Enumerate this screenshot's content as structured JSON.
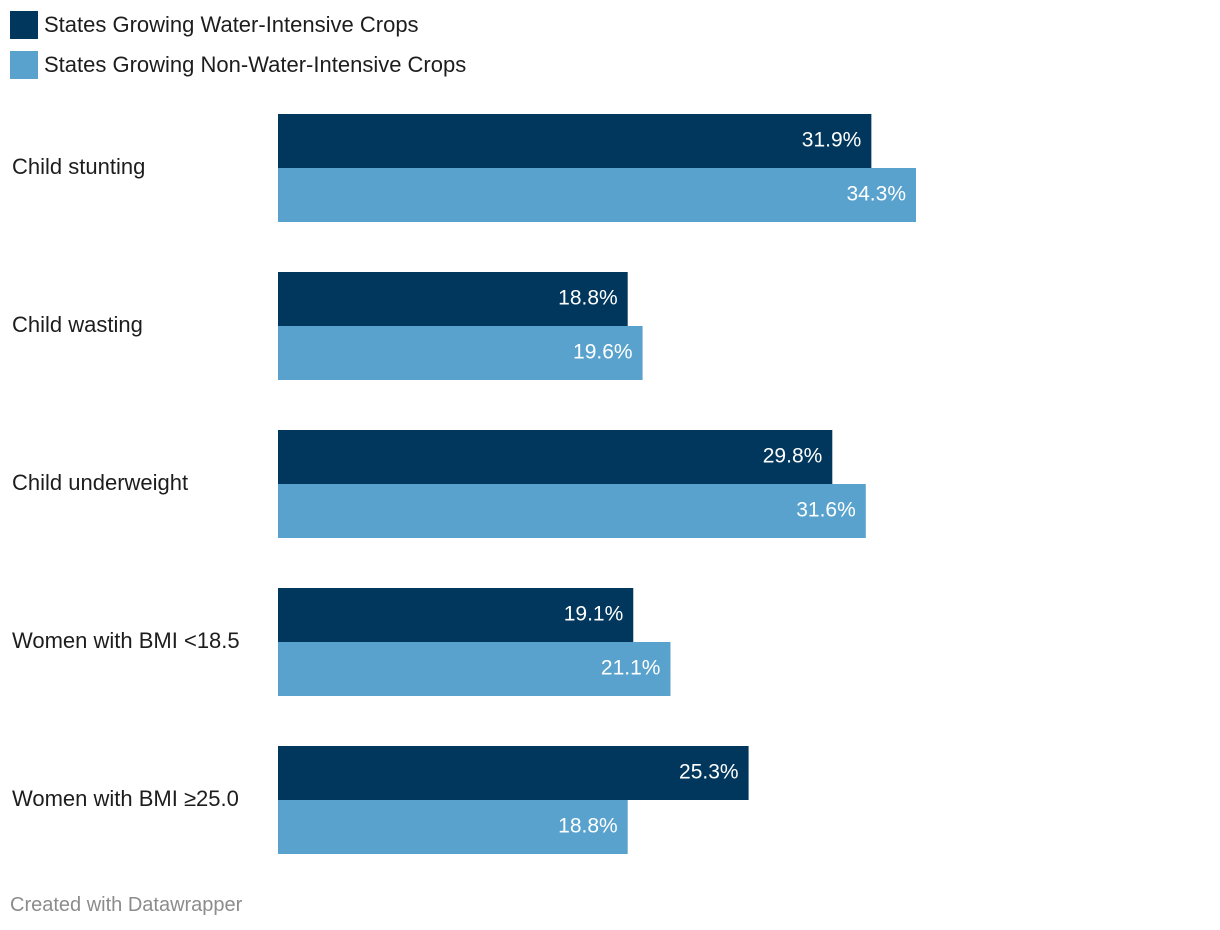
{
  "chart_data": {
    "type": "bar",
    "orientation": "horizontal",
    "title": "",
    "xlabel": "",
    "ylabel": "",
    "categories": [
      "Child stunting",
      "Child wasting",
      "Child underweight",
      "Women with BMI <18.5",
      "Women with BMI ≥25.0"
    ],
    "series": [
      {
        "name": "States Growing Water-Intensive Crops",
        "color": "#01375c",
        "values": [
          31.9,
          18.8,
          29.8,
          19.1,
          25.3
        ],
        "labels": [
          "31.9%",
          "18.8%",
          "29.8%",
          "19.1%",
          "25.3%"
        ]
      },
      {
        "name": "States Growing Non-Water-Intensive Crops",
        "color": "#58a2cd",
        "values": [
          34.3,
          19.6,
          31.6,
          21.1,
          18.8
        ],
        "labels": [
          "34.3%",
          "19.6%",
          "31.6%",
          "21.1%",
          "18.8%"
        ]
      }
    ],
    "xlim": [
      0,
      34.3
    ],
    "grid": false,
    "legend_position": "top-left"
  },
  "footer": {
    "credit": "Created with Datawrapper"
  }
}
